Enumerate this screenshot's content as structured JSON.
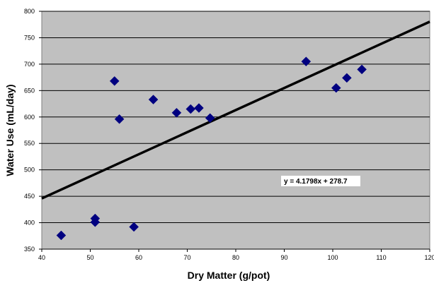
{
  "chart_data": {
    "type": "scatter",
    "xlabel": "Dry Matter  (g/pot)",
    "ylabel": "Water Use (mL/day)",
    "xlim": [
      40,
      120
    ],
    "ylim": [
      350,
      800
    ],
    "xticks": [
      40,
      50,
      60,
      70,
      80,
      90,
      100,
      110,
      120
    ],
    "yticks": [
      350,
      400,
      450,
      500,
      550,
      600,
      650,
      700,
      750,
      800
    ],
    "grid": "horizontal",
    "colors": {
      "plot_background": "#c0c0c0",
      "marker": "#000080",
      "trendline": "#000000"
    },
    "points": [
      {
        "x": 44,
        "y": 376
      },
      {
        "x": 51,
        "y": 401
      },
      {
        "x": 51,
        "y": 408
      },
      {
        "x": 55,
        "y": 668
      },
      {
        "x": 56,
        "y": 596
      },
      {
        "x": 59,
        "y": 392
      },
      {
        "x": 63,
        "y": 633
      },
      {
        "x": 67.8,
        "y": 608
      },
      {
        "x": 70.7,
        "y": 615
      },
      {
        "x": 72.4,
        "y": 617
      },
      {
        "x": 74.7,
        "y": 598
      },
      {
        "x": 94.5,
        "y": 705
      },
      {
        "x": 100.7,
        "y": 655
      },
      {
        "x": 102.9,
        "y": 674
      },
      {
        "x": 106,
        "y": 690
      }
    ],
    "trendline": {
      "slope": 4.1798,
      "intercept": 278.7
    },
    "annotation": "y = 4.1798x + 278.7"
  }
}
